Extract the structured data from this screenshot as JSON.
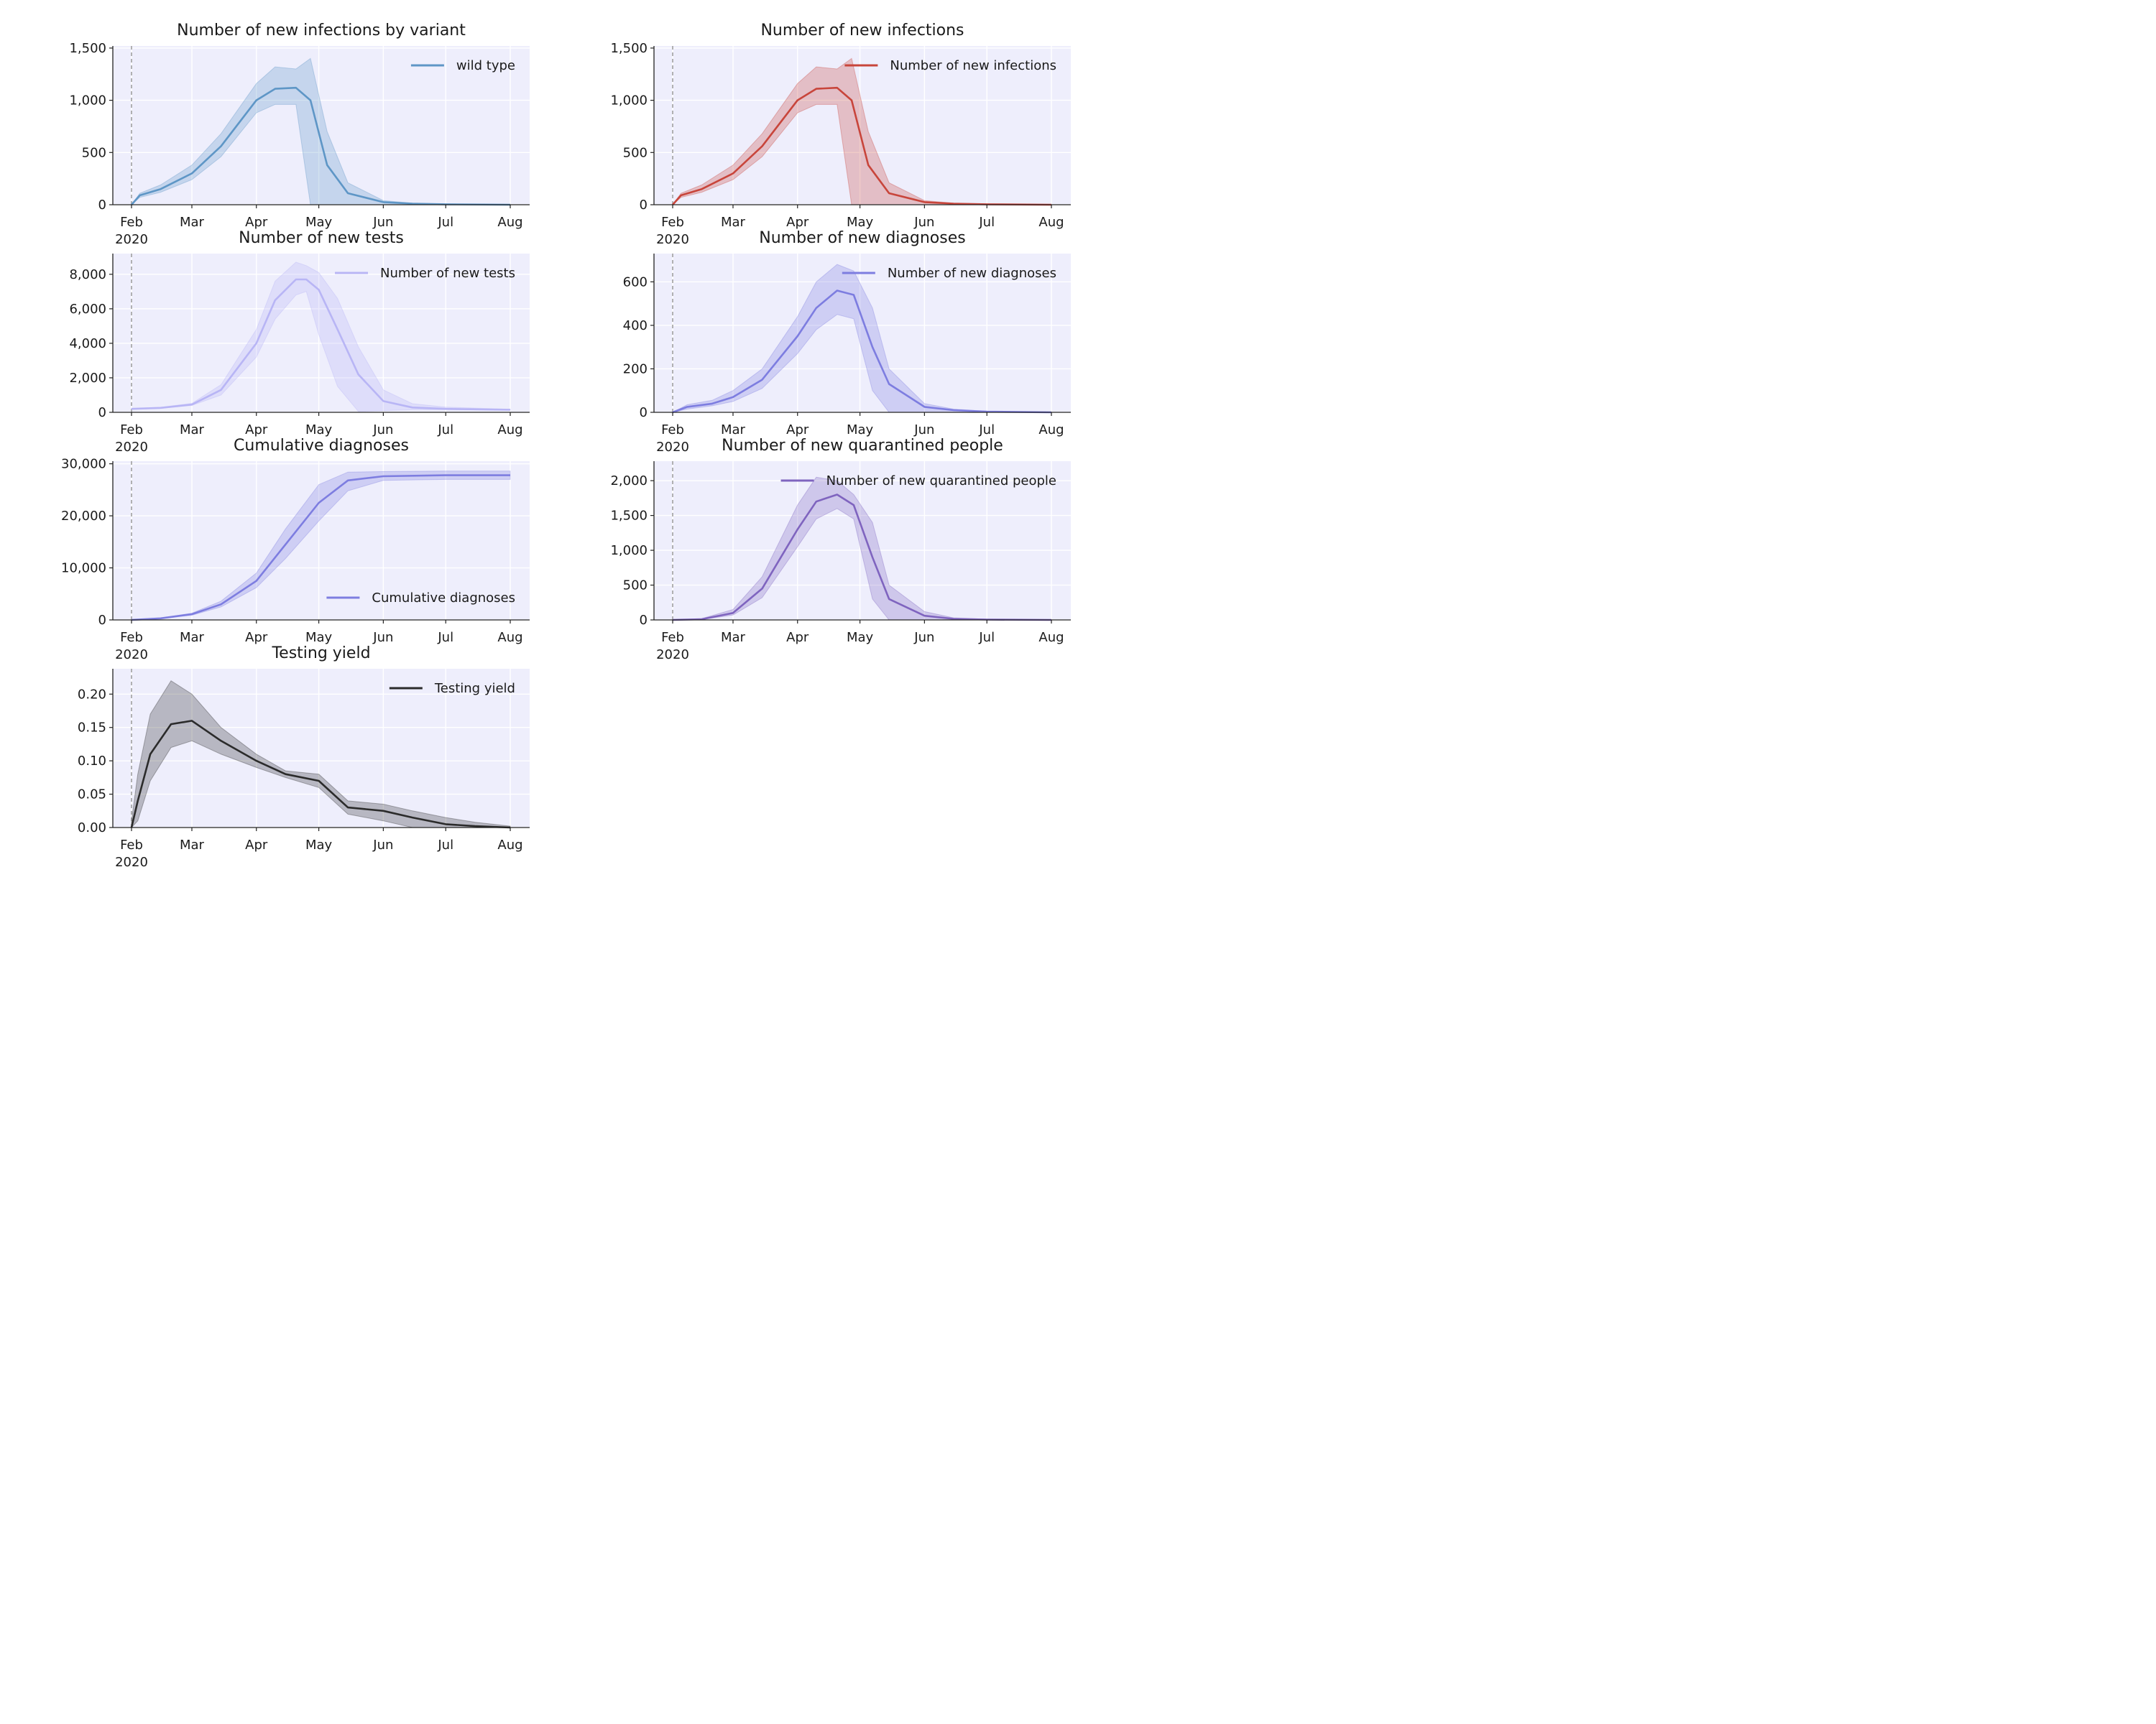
{
  "chart_data": [
    {
      "type": "line",
      "title": "Number of new infections by variant",
      "color": "#5e96c6",
      "x_ticks": [
        "Feb",
        "Mar",
        "Apr",
        "May",
        "Jun",
        "Jul",
        "Aug"
      ],
      "x_year": "2020",
      "y_ticks": [
        "0",
        "500",
        "1,000",
        "1,500"
      ],
      "ylim": [
        0,
        1520
      ],
      "legend": "top-right",
      "series": [
        {
          "name": "wild type",
          "x": [
            "2020-02-01",
            "2020-02-05",
            "2020-02-15",
            "2020-03-01",
            "2020-03-15",
            "2020-04-01",
            "2020-04-10",
            "2020-04-20",
            "2020-04-27",
            "2020-05-05",
            "2020-05-15",
            "2020-06-01",
            "2020-06-15",
            "2020-07-01",
            "2020-08-01"
          ],
          "values": [
            0,
            90,
            150,
            300,
            560,
            1000,
            1110,
            1120,
            1000,
            380,
            110,
            25,
            10,
            4,
            0
          ],
          "lower": [
            0,
            70,
            120,
            240,
            460,
            880,
            960,
            960,
            0,
            0,
            0,
            0,
            0,
            0,
            0
          ],
          "upper": [
            0,
            110,
            190,
            380,
            680,
            1160,
            1320,
            1300,
            1400,
            700,
            210,
            40,
            15,
            6,
            0
          ]
        }
      ]
    },
    {
      "type": "line",
      "title": "Number of new infections",
      "color": "#c8453b",
      "x_ticks": [
        "Feb",
        "Mar",
        "Apr",
        "May",
        "Jun",
        "Jul",
        "Aug"
      ],
      "x_year": "2020",
      "y_ticks": [
        "0",
        "500",
        "1,000",
        "1,500"
      ],
      "ylim": [
        0,
        1520
      ],
      "legend": "top-right",
      "series": [
        {
          "name": "Number of new infections",
          "x": [
            "2020-02-01",
            "2020-02-05",
            "2020-02-15",
            "2020-03-01",
            "2020-03-15",
            "2020-04-01",
            "2020-04-10",
            "2020-04-20",
            "2020-04-27",
            "2020-05-05",
            "2020-05-15",
            "2020-06-01",
            "2020-06-15",
            "2020-07-01",
            "2020-08-01"
          ],
          "values": [
            0,
            90,
            150,
            300,
            560,
            1000,
            1110,
            1120,
            1000,
            380,
            110,
            25,
            10,
            4,
            0
          ],
          "lower": [
            0,
            70,
            120,
            240,
            460,
            880,
            960,
            960,
            0,
            0,
            0,
            0,
            0,
            0,
            0
          ],
          "upper": [
            0,
            110,
            190,
            380,
            680,
            1160,
            1320,
            1300,
            1400,
            700,
            210,
            40,
            15,
            6,
            0
          ]
        }
      ]
    },
    {
      "type": "line",
      "title": "Number of new tests",
      "color": "#b8b5f5",
      "x_ticks": [
        "Feb",
        "Mar",
        "Apr",
        "May",
        "Jun",
        "Jul",
        "Aug"
      ],
      "x_year": "2020",
      "y_ticks": [
        "0",
        "2,000",
        "4,000",
        "6,000",
        "8,000"
      ],
      "ylim": [
        0,
        9200
      ],
      "legend": "top-right",
      "series": [
        {
          "name": "Number of new tests",
          "x": [
            "2020-02-01",
            "2020-02-15",
            "2020-03-01",
            "2020-03-15",
            "2020-04-01",
            "2020-04-10",
            "2020-04-20",
            "2020-04-25",
            "2020-05-01",
            "2020-05-10",
            "2020-05-20",
            "2020-06-01",
            "2020-06-15",
            "2020-07-01",
            "2020-08-01"
          ],
          "values": [
            200,
            260,
            450,
            1300,
            4000,
            6500,
            7700,
            7700,
            7100,
            4800,
            2200,
            650,
            280,
            200,
            150
          ],
          "lower": [
            180,
            230,
            400,
            1000,
            3200,
            5400,
            6800,
            7000,
            4500,
            1500,
            50,
            100,
            150,
            150,
            130
          ],
          "upper": [
            220,
            290,
            520,
            1600,
            4800,
            7600,
            8700,
            8500,
            8100,
            6600,
            3800,
            1300,
            500,
            300,
            180
          ]
        }
      ]
    },
    {
      "type": "line",
      "title": "Number of new diagnoses",
      "color": "#7d7de0",
      "x_ticks": [
        "Feb",
        "Mar",
        "Apr",
        "May",
        "Jun",
        "Jul",
        "Aug"
      ],
      "x_year": "2020",
      "y_ticks": [
        "0",
        "200",
        "400",
        "600"
      ],
      "ylim": [
        0,
        730
      ],
      "legend": "top-right",
      "series": [
        {
          "name": "Number of new diagnoses",
          "x": [
            "2020-02-01",
            "2020-02-08",
            "2020-02-20",
            "2020-03-01",
            "2020-03-15",
            "2020-04-01",
            "2020-04-10",
            "2020-04-20",
            "2020-04-28",
            "2020-05-07",
            "2020-05-15",
            "2020-06-01",
            "2020-06-15",
            "2020-07-01",
            "2020-08-01"
          ],
          "values": [
            0,
            25,
            40,
            70,
            150,
            350,
            480,
            560,
            540,
            300,
            130,
            25,
            10,
            3,
            0
          ],
          "lower": [
            0,
            15,
            30,
            50,
            110,
            270,
            380,
            450,
            430,
            100,
            0,
            0,
            0,
            0,
            0
          ],
          "upper": [
            0,
            35,
            55,
            100,
            200,
            440,
            600,
            680,
            650,
            480,
            200,
            40,
            15,
            5,
            0
          ]
        }
      ]
    },
    {
      "type": "line",
      "title": "Cumulative diagnoses",
      "color": "#7d7de0",
      "x_ticks": [
        "Feb",
        "Mar",
        "Apr",
        "May",
        "Jun",
        "Jul",
        "Aug"
      ],
      "x_year": "2020",
      "y_ticks": [
        "0",
        "10,000",
        "20,000",
        "30,000"
      ],
      "ylim": [
        0,
        30500
      ],
      "legend": "bottom-right",
      "series": [
        {
          "name": "Cumulative diagnoses",
          "x": [
            "2020-02-01",
            "2020-02-15",
            "2020-03-01",
            "2020-03-15",
            "2020-04-01",
            "2020-04-15",
            "2020-05-01",
            "2020-05-15",
            "2020-06-01",
            "2020-07-01",
            "2020-08-01"
          ],
          "values": [
            0,
            300,
            1100,
            3000,
            7500,
            14500,
            22500,
            26800,
            27600,
            27800,
            27800
          ],
          "lower": [
            0,
            250,
            900,
            2500,
            6200,
            11800,
            19000,
            24800,
            26800,
            27000,
            27000
          ],
          "upper": [
            0,
            350,
            1300,
            3600,
            9000,
            17500,
            26000,
            28400,
            28500,
            28600,
            28600
          ]
        }
      ]
    },
    {
      "type": "line",
      "title": "Number of new quarantined people",
      "color": "#7f64bf",
      "x_ticks": [
        "Feb",
        "Mar",
        "Apr",
        "May",
        "Jun",
        "Jul",
        "Aug"
      ],
      "x_year": "2020",
      "y_ticks": [
        "0",
        "500",
        "1,000",
        "1,500",
        "2,000"
      ],
      "ylim": [
        0,
        2280
      ],
      "legend": "top-right",
      "series": [
        {
          "name": "Number of new quarantined people",
          "x": [
            "2020-02-01",
            "2020-02-15",
            "2020-03-01",
            "2020-03-15",
            "2020-04-01",
            "2020-04-10",
            "2020-04-20",
            "2020-04-28",
            "2020-05-07",
            "2020-05-15",
            "2020-06-01",
            "2020-06-15",
            "2020-07-01",
            "2020-08-01"
          ],
          "values": [
            0,
            10,
            100,
            450,
            1300,
            1700,
            1800,
            1650,
            900,
            300,
            60,
            15,
            5,
            0
          ],
          "lower": [
            0,
            5,
            70,
            320,
            1050,
            1450,
            1600,
            1450,
            300,
            0,
            0,
            0,
            0,
            0
          ],
          "upper": [
            0,
            20,
            150,
            620,
            1650,
            2050,
            2000,
            1800,
            1400,
            500,
            120,
            30,
            10,
            0
          ]
        }
      ]
    },
    {
      "type": "line",
      "title": "Testing yield",
      "color": "#2b2b2b",
      "x_ticks": [
        "Feb",
        "Mar",
        "Apr",
        "May",
        "Jun",
        "Jul",
        "Aug"
      ],
      "x_year": "2020",
      "y_ticks": [
        "0.00",
        "0.05",
        "0.10",
        "0.15",
        "0.20"
      ],
      "ylim": [
        0,
        0.238
      ],
      "legend": "top-right",
      "series": [
        {
          "name": "Testing yield",
          "x": [
            "2020-02-01",
            "2020-02-04",
            "2020-02-10",
            "2020-02-20",
            "2020-03-01",
            "2020-03-15",
            "2020-04-01",
            "2020-04-15",
            "2020-05-01",
            "2020-05-15",
            "2020-06-01",
            "2020-06-15",
            "2020-07-01",
            "2020-07-15",
            "2020-08-01"
          ],
          "values": [
            0,
            0.04,
            0.11,
            0.155,
            0.16,
            0.13,
            0.1,
            0.08,
            0.07,
            0.03,
            0.025,
            0.015,
            0.005,
            0.002,
            0
          ],
          "lower": [
            0,
            0.01,
            0.07,
            0.12,
            0.13,
            0.11,
            0.09,
            0.075,
            0.06,
            0.02,
            0.01,
            0.0,
            0.0,
            0.0,
            0
          ],
          "upper": [
            0.01,
            0.08,
            0.17,
            0.22,
            0.2,
            0.15,
            0.11,
            0.085,
            0.08,
            0.04,
            0.035,
            0.025,
            0.015,
            0.008,
            0.002
          ]
        }
      ]
    }
  ]
}
